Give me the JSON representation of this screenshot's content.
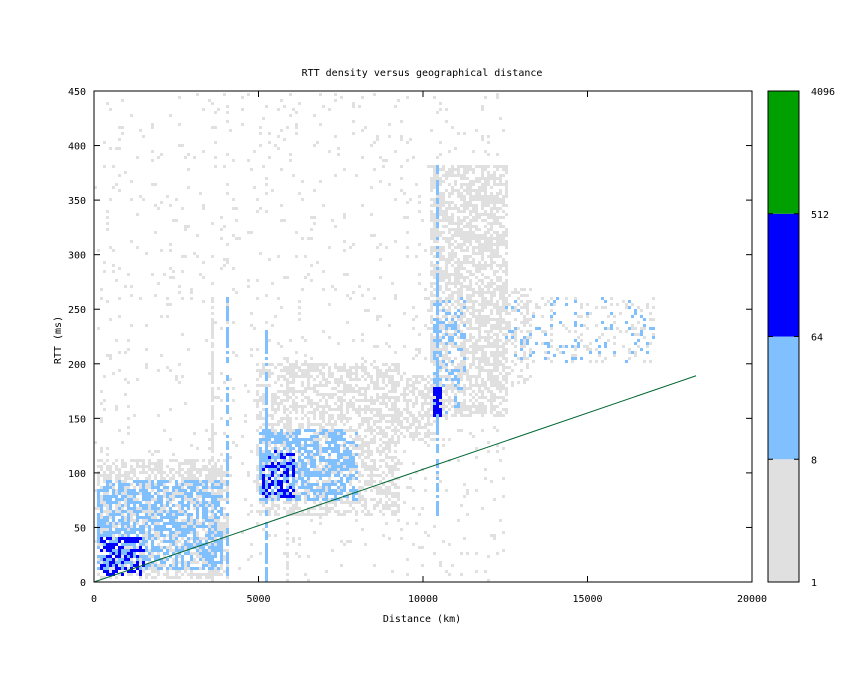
{
  "chart_data": {
    "type": "heatmap",
    "title": "RTT density versus geographical distance",
    "xlabel": "Distance (km)",
    "ylabel": "RTT (ms)",
    "xlim": [
      0,
      20000
    ],
    "ylim": [
      0,
      450
    ],
    "xticks": [
      0,
      5000,
      10000,
      15000,
      20000
    ],
    "yticks": [
      0,
      50,
      100,
      150,
      200,
      250,
      300,
      350,
      400,
      450
    ],
    "grid": false,
    "colorscale": {
      "type": "log",
      "tick_labels": [
        "1",
        "8",
        "64",
        "512",
        "4096"
      ],
      "bins": [
        {
          "from": 1,
          "to": 8,
          "color": "#e0e0e0"
        },
        {
          "from": 8,
          "to": 64,
          "color": "#80c0ff"
        },
        {
          "from": 64,
          "to": 512,
          "color": "#0000ff"
        },
        {
          "from": 512,
          "to": 4096,
          "color": "#00a000"
        }
      ]
    },
    "reference_line": {
      "color": "#006633",
      "x": [
        0,
        18300
      ],
      "y": [
        0,
        189
      ]
    },
    "density_regions": [
      {
        "x": [
          100,
          4100
        ],
        "y": [
          2,
          110
        ],
        "level": 1,
        "density": 0.55
      },
      {
        "x": [
          100,
          3900
        ],
        "y": [
          10,
          90
        ],
        "level": 2,
        "density": 0.55
      },
      {
        "x": [
          200,
          1500
        ],
        "y": [
          5,
          40
        ],
        "level": 3,
        "density": 0.35
      },
      {
        "x": [
          4900,
          9200
        ],
        "y": [
          60,
          200
        ],
        "level": 1,
        "density": 0.5
      },
      {
        "x": [
          5000,
          8000
        ],
        "y": [
          75,
          140
        ],
        "level": 2,
        "density": 0.55
      },
      {
        "x": [
          5100,
          6100
        ],
        "y": [
          78,
          120
        ],
        "level": 3,
        "density": 0.3
      },
      {
        "x": [
          9000,
          10300
        ],
        "y": [
          130,
          190
        ],
        "level": 1,
        "density": 0.45
      },
      {
        "x": [
          10200,
          12500
        ],
        "y": [
          150,
          380
        ],
        "level": 1,
        "density": 0.6
      },
      {
        "x": [
          10300,
          11300
        ],
        "y": [
          155,
          260
        ],
        "level": 2,
        "density": 0.25
      },
      {
        "x": [
          10300,
          10500
        ],
        "y": [
          150,
          175
        ],
        "level": 3,
        "density": 0.7
      },
      {
        "x": [
          12000,
          13200
        ],
        "y": [
          180,
          270
        ],
        "level": 1,
        "density": 0.25
      },
      {
        "x": [
          12500,
          17000
        ],
        "y": [
          200,
          260
        ],
        "level": 1,
        "density": 0.15
      },
      {
        "x": [
          12500,
          17000
        ],
        "y": [
          200,
          260
        ],
        "level": 2,
        "density": 0.07
      },
      {
        "x": [
          0,
          12500
        ],
        "y": [
          0,
          450
        ],
        "level": 1,
        "density": 0.04
      }
    ],
    "vertical_streaks": [
      {
        "x": 4000,
        "y": [
          0,
          260
        ],
        "level": 2
      },
      {
        "x": 10350,
        "y": [
          60,
          380
        ],
        "level": 2
      },
      {
        "x": 5200,
        "y": [
          0,
          230
        ],
        "level": 2
      },
      {
        "x": 3600,
        "y": [
          0,
          250
        ],
        "level": 1
      },
      {
        "x": 5800,
        "y": [
          0,
          210
        ],
        "level": 1
      }
    ]
  }
}
